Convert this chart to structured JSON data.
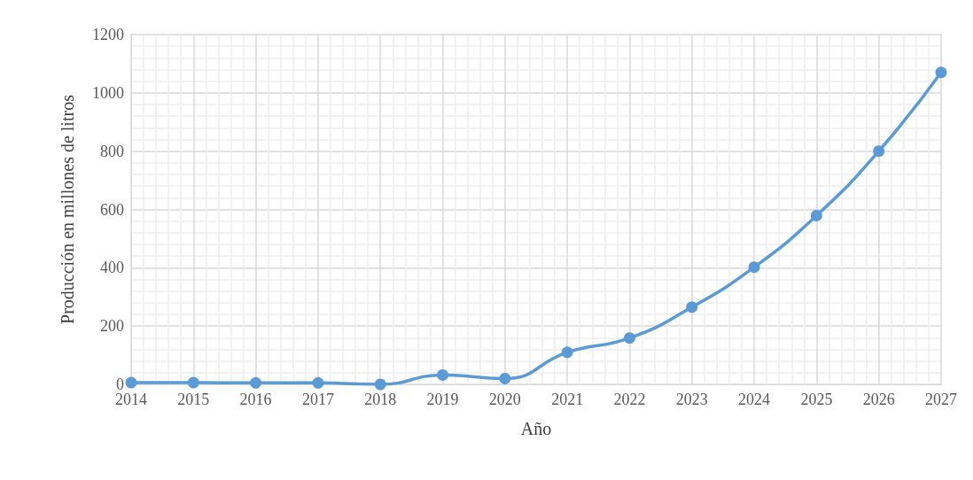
{
  "chart_data": {
    "type": "line",
    "xlabel": "Año",
    "ylabel": "Producción en millones de litros",
    "x": [
      2014,
      2015,
      2016,
      2017,
      2018,
      2019,
      2020,
      2021,
      2022,
      2023,
      2024,
      2025,
      2026,
      2027
    ],
    "series": [
      {
        "color": "#5b9bd5",
        "values": [
          6,
          6,
          5,
          5,
          0,
          32,
          20,
          110,
          159,
          265,
          402,
          579,
          800,
          1070
        ]
      }
    ],
    "xlim": [
      2014,
      2027
    ],
    "xticks": [
      2014,
      2015,
      2016,
      2017,
      2018,
      2019,
      2020,
      2021,
      2022,
      2023,
      2024,
      2025,
      2026,
      2027
    ],
    "ylim": [
      0,
      1200
    ],
    "yticks": [
      0,
      200,
      400,
      600,
      800,
      1000,
      1200
    ],
    "grid": true,
    "marker": "circle",
    "line_style": "solid"
  }
}
